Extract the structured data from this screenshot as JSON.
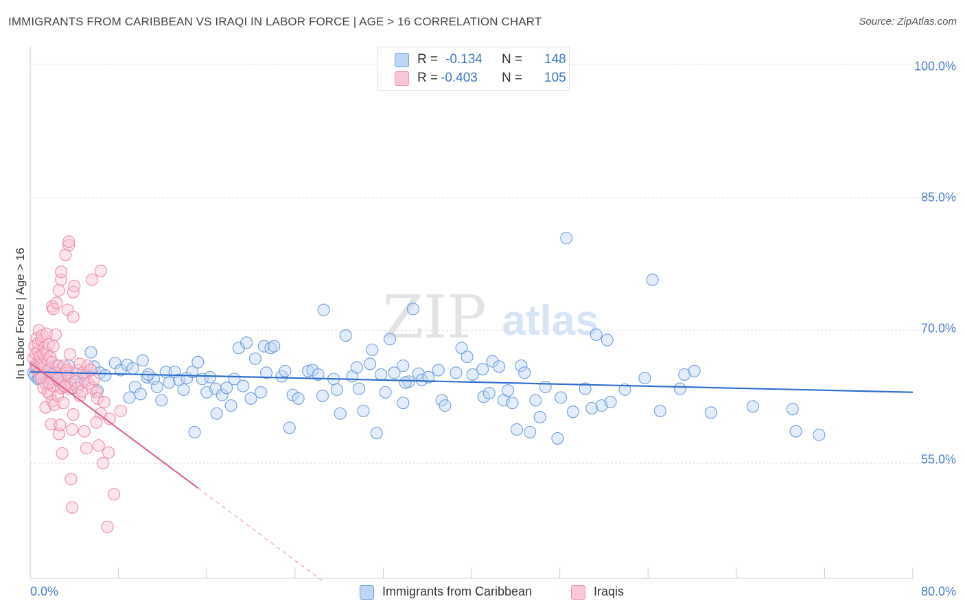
{
  "title": "IMMIGRANTS FROM CARIBBEAN VS IRAQI IN LABOR FORCE | AGE > 16 CORRELATION CHART",
  "source": "Source: ZipAtlas.com",
  "watermark": {
    "zip": "ZIP",
    "atlas": "atlas"
  },
  "legend_top": {
    "r_label": "R =",
    "n_label": "N =",
    "rows": [
      {
        "r": "-0.134",
        "n": "148"
      },
      {
        "r": "-0.403",
        "n": "105"
      }
    ]
  },
  "chart_data": {
    "type": "scatter",
    "title": "IMMIGRANTS FROM CARIBBEAN VS IRAQI IN LABOR FORCE | AGE > 16 CORRELATION CHART",
    "xlabel": "",
    "ylabel": "In Labor Force | Age > 16",
    "xlim": [
      0,
      80
    ],
    "ylim": [
      42,
      102
    ],
    "y_ticks": [
      55,
      70,
      85,
      100
    ],
    "y_tick_labels": [
      "55.0%",
      "70.0%",
      "85.0%",
      "100.0%"
    ],
    "x_tick_labels": [
      "0.0%",
      "80.0%"
    ],
    "grid": true,
    "legend_position": "bottom",
    "series": [
      {
        "name": "Immigrants from Caribbean",
        "color": "#6f9edb",
        "fill": "#bfd5f5",
        "trend_color": "#2f6fcf",
        "r": -0.134,
        "n": 148,
        "trend": {
          "x0": 0,
          "y0": 65.3,
          "x1": 80,
          "y1": 63.0
        },
        "points": [
          [
            0.3,
            65.2
          ],
          [
            0.4,
            64.9
          ],
          [
            0.5,
            66.1
          ],
          [
            0.6,
            65.8
          ],
          [
            0.7,
            64.5
          ],
          [
            0.8,
            65.5
          ],
          [
            1.0,
            65.0
          ],
          [
            1.1,
            66.3
          ],
          [
            1.3,
            64.8
          ],
          [
            1.5,
            65.4
          ],
          [
            1.7,
            64.1
          ],
          [
            1.9,
            65.9
          ],
          [
            2.0,
            64.6
          ],
          [
            2.2,
            65.2
          ],
          [
            2.4,
            66.0
          ],
          [
            2.6,
            64.3
          ],
          [
            2.9,
            63.8
          ],
          [
            3.2,
            64.9
          ],
          [
            3.5,
            66.0
          ],
          [
            3.8,
            63.5
          ],
          [
            4.2,
            65.1
          ],
          [
            4.6,
            64.0
          ],
          [
            5.0,
            64.9
          ],
          [
            5.5,
            67.5
          ],
          [
            5.8,
            65.9
          ],
          [
            6.3,
            65.2
          ],
          [
            6.8,
            64.9
          ],
          [
            7.7,
            66.3
          ],
          [
            8.2,
            65.5
          ],
          [
            8.8,
            66.1
          ],
          [
            9.0,
            62.4
          ],
          [
            9.5,
            63.6
          ],
          [
            10.0,
            62.8
          ],
          [
            10.2,
            66.6
          ],
          [
            10.6,
            64.7
          ],
          [
            11.2,
            64.5
          ],
          [
            11.5,
            63.6
          ],
          [
            11.9,
            62.1
          ],
          [
            12.3,
            65.3
          ],
          [
            12.6,
            64.1
          ],
          [
            13.1,
            65.3
          ],
          [
            13.5,
            64.4
          ],
          [
            13.9,
            63.3
          ],
          [
            14.2,
            64.6
          ],
          [
            14.7,
            65.3
          ],
          [
            14.9,
            58.5
          ],
          [
            15.2,
            66.4
          ],
          [
            15.6,
            64.5
          ],
          [
            16.0,
            63.0
          ],
          [
            16.3,
            64.7
          ],
          [
            16.8,
            63.4
          ],
          [
            16.9,
            60.6
          ],
          [
            17.4,
            62.7
          ],
          [
            17.8,
            63.5
          ],
          [
            18.2,
            61.5
          ],
          [
            18.5,
            64.5
          ],
          [
            18.9,
            68.0
          ],
          [
            19.3,
            63.7
          ],
          [
            19.6,
            68.6
          ],
          [
            20.0,
            62.3
          ],
          [
            20.4,
            66.8
          ],
          [
            20.9,
            63.0
          ],
          [
            21.2,
            68.2
          ],
          [
            21.8,
            68.0
          ],
          [
            22.1,
            68.2
          ],
          [
            22.8,
            64.8
          ],
          [
            23.1,
            65.4
          ],
          [
            23.5,
            59.0
          ],
          [
            23.8,
            62.7
          ],
          [
            24.3,
            62.3
          ],
          [
            25.2,
            65.4
          ],
          [
            25.6,
            65.5
          ],
          [
            26.1,
            65.0
          ],
          [
            26.5,
            62.6
          ],
          [
            26.6,
            72.3
          ],
          [
            27.5,
            64.5
          ],
          [
            28.1,
            60.6
          ],
          [
            28.6,
            69.4
          ],
          [
            29.2,
            64.8
          ],
          [
            29.6,
            65.8
          ],
          [
            29.8,
            63.4
          ],
          [
            30.2,
            60.9
          ],
          [
            30.8,
            66.2
          ],
          [
            31.0,
            67.8
          ],
          [
            31.4,
            58.4
          ],
          [
            31.8,
            65.0
          ],
          [
            32.2,
            63.0
          ],
          [
            32.6,
            69.0
          ],
          [
            33.0,
            65.2
          ],
          [
            33.8,
            66.0
          ],
          [
            33.8,
            61.8
          ],
          [
            34.3,
            64.2
          ],
          [
            34.7,
            72.4
          ],
          [
            35.2,
            65.1
          ],
          [
            35.5,
            64.4
          ],
          [
            36.1,
            64.7
          ],
          [
            37.0,
            65.5
          ],
          [
            37.3,
            62.1
          ],
          [
            37.6,
            61.5
          ],
          [
            38.6,
            65.2
          ],
          [
            39.1,
            68.0
          ],
          [
            39.6,
            67.0
          ],
          [
            40.1,
            65.0
          ],
          [
            41.0,
            65.6
          ],
          [
            41.1,
            62.5
          ],
          [
            41.6,
            62.9
          ],
          [
            41.9,
            66.5
          ],
          [
            42.5,
            65.9
          ],
          [
            42.9,
            62.1
          ],
          [
            43.3,
            63.2
          ],
          [
            43.7,
            61.8
          ],
          [
            44.1,
            58.8
          ],
          [
            44.5,
            66.0
          ],
          [
            44.8,
            65.2
          ],
          [
            45.3,
            58.5
          ],
          [
            45.8,
            62.1
          ],
          [
            46.2,
            60.2
          ],
          [
            46.7,
            63.6
          ],
          [
            47.8,
            57.8
          ],
          [
            48.1,
            62.4
          ],
          [
            48.6,
            80.4
          ],
          [
            49.2,
            60.8
          ],
          [
            50.3,
            63.4
          ],
          [
            50.9,
            61.2
          ],
          [
            51.3,
            69.5
          ],
          [
            51.8,
            61.5
          ],
          [
            52.3,
            68.9
          ],
          [
            52.6,
            61.9
          ],
          [
            53.9,
            63.3
          ],
          [
            55.7,
            64.6
          ],
          [
            56.4,
            75.7
          ],
          [
            57.1,
            60.9
          ],
          [
            58.9,
            63.4
          ],
          [
            59.3,
            65.0
          ],
          [
            60.2,
            65.4
          ],
          [
            61.7,
            60.7
          ],
          [
            65.5,
            61.4
          ],
          [
            69.1,
            61.1
          ],
          [
            69.4,
            58.6
          ],
          [
            71.5,
            58.2
          ],
          [
            0.8,
            64.6
          ],
          [
            2.7,
            64.8
          ],
          [
            6.1,
            63.2
          ],
          [
            9.3,
            65.7
          ],
          [
            21.4,
            65.2
          ],
          [
            27.8,
            63.3
          ],
          [
            34.0,
            64.1
          ],
          [
            10.7,
            65.0
          ]
        ]
      },
      {
        "name": "Iraqis",
        "color": "#ec8eaa",
        "fill": "#fbc6d5",
        "trend_color": "#e26390",
        "r": -0.403,
        "n": 105,
        "trend": {
          "x0": 0,
          "y0": 66.3,
          "x1": 15.2,
          "y1": 52.2
        },
        "trend_extension": {
          "x0": 15.2,
          "y0": 52.2,
          "x1": 26.5,
          "y1": 41.7
        },
        "points": [
          [
            0.3,
            66.8
          ],
          [
            0.4,
            68.2
          ],
          [
            0.5,
            65.7
          ],
          [
            0.5,
            67.4
          ],
          [
            0.6,
            69.1
          ],
          [
            0.6,
            66.0
          ],
          [
            0.7,
            67.6
          ],
          [
            0.7,
            68.5
          ],
          [
            0.8,
            65.2
          ],
          [
            0.8,
            70.0
          ],
          [
            0.9,
            66.5
          ],
          [
            0.9,
            67.0
          ],
          [
            1.0,
            68.9
          ],
          [
            1.0,
            64.7
          ],
          [
            1.1,
            66.2
          ],
          [
            1.1,
            69.4
          ],
          [
            1.2,
            67.3
          ],
          [
            1.2,
            63.5
          ],
          [
            1.3,
            68.0
          ],
          [
            1.3,
            66.0
          ],
          [
            1.4,
            61.3
          ],
          [
            1.4,
            64.0
          ],
          [
            1.5,
            69.6
          ],
          [
            1.5,
            67.5
          ],
          [
            1.6,
            66.6
          ],
          [
            1.6,
            63.0
          ],
          [
            1.7,
            68.4
          ],
          [
            1.7,
            65.5
          ],
          [
            1.8,
            62.8
          ],
          [
            1.8,
            67.0
          ],
          [
            1.9,
            59.4
          ],
          [
            1.9,
            64.5
          ],
          [
            2.0,
            62.0
          ],
          [
            2.0,
            66.4
          ],
          [
            2.1,
            68.2
          ],
          [
            2.1,
            63.7
          ],
          [
            2.2,
            61.6
          ],
          [
            2.3,
            69.5
          ],
          [
            2.4,
            65.2
          ],
          [
            2.5,
            62.6
          ],
          [
            2.6,
            66.0
          ],
          [
            2.6,
            58.3
          ],
          [
            2.7,
            59.3
          ],
          [
            2.8,
            63.5
          ],
          [
            2.9,
            64.1
          ],
          [
            2.9,
            56.1
          ],
          [
            3.0,
            61.8
          ],
          [
            3.1,
            66.0
          ],
          [
            3.2,
            63.6
          ],
          [
            3.3,
            65.2
          ],
          [
            3.3,
            65.5
          ],
          [
            3.4,
            64.8
          ],
          [
            3.5,
            63.4
          ],
          [
            3.6,
            67.3
          ],
          [
            3.7,
            63.9
          ],
          [
            3.8,
            58.8
          ],
          [
            3.9,
            60.5
          ],
          [
            4.1,
            64.2
          ],
          [
            4.3,
            63.5
          ],
          [
            4.5,
            62.6
          ],
          [
            4.7,
            63.1
          ],
          [
            5.0,
            64.2
          ],
          [
            5.3,
            64.0
          ],
          [
            5.6,
            63.5
          ],
          [
            5.8,
            64.5
          ],
          [
            6.0,
            63.0
          ],
          [
            6.1,
            62.3
          ],
          [
            6.4,
            60.6
          ],
          [
            6.7,
            61.9
          ],
          [
            7.2,
            60.0
          ],
          [
            2.0,
            72.7
          ],
          [
            2.1,
            72.4
          ],
          [
            2.4,
            73.1
          ],
          [
            2.6,
            74.5
          ],
          [
            2.8,
            75.7
          ],
          [
            2.8,
            76.6
          ],
          [
            3.2,
            78.5
          ],
          [
            3.4,
            72.3
          ],
          [
            3.5,
            79.6
          ],
          [
            3.5,
            80.0
          ],
          [
            3.9,
            71.5
          ],
          [
            3.9,
            74.3
          ],
          [
            4.0,
            75.0
          ],
          [
            5.6,
            75.7
          ],
          [
            6.4,
            76.7
          ],
          [
            4.3,
            65.5
          ],
          [
            4.5,
            66.2
          ],
          [
            4.8,
            65.2
          ],
          [
            5.2,
            66.0
          ],
          [
            5.5,
            65.5
          ],
          [
            3.7,
            53.2
          ],
          [
            3.8,
            50.0
          ],
          [
            4.9,
            58.6
          ],
          [
            5.1,
            56.7
          ],
          [
            6.0,
            59.6
          ],
          [
            6.2,
            57.0
          ],
          [
            6.6,
            55.0
          ],
          [
            7.1,
            56.2
          ],
          [
            7.0,
            47.8
          ],
          [
            7.6,
            51.5
          ],
          [
            8.2,
            60.9
          ],
          [
            1.0,
            64.6
          ],
          [
            1.7,
            64.0
          ],
          [
            2.5,
            64.5
          ],
          [
            3.1,
            63.7
          ]
        ]
      }
    ]
  },
  "legend_bottom": [
    "Immigrants from Caribbean",
    "Iraqis"
  ]
}
